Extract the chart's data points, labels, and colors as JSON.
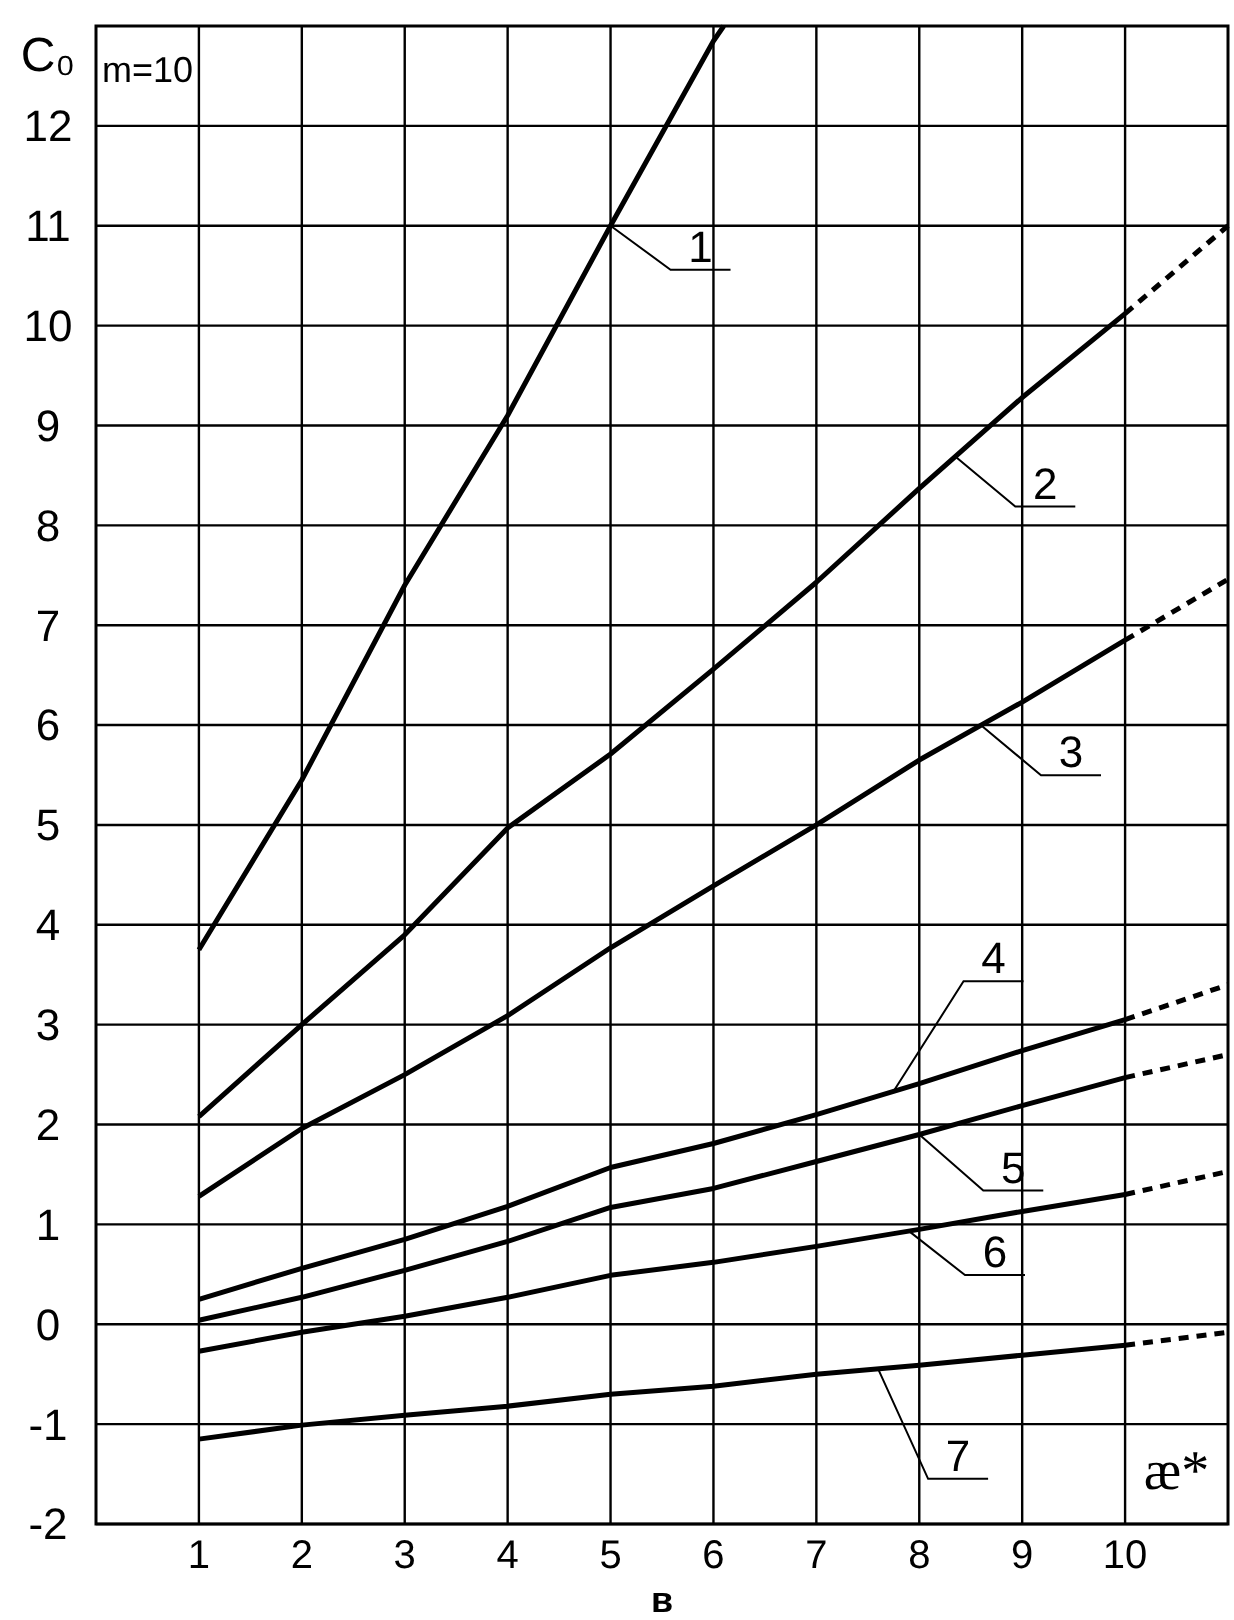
{
  "chart_data": {
    "type": "line",
    "ylabel": "C₀",
    "xlabel": "æ*",
    "annotations": [
      "m=10",
      "в"
    ],
    "xlim": [
      0,
      11
    ],
    "xticks": [
      1,
      2,
      3,
      4,
      5,
      6,
      7,
      8,
      9,
      10
    ],
    "ylim": [
      -2,
      13
    ],
    "yticks": [
      -2,
      -1,
      0,
      1,
      2,
      3,
      4,
      5,
      6,
      7,
      8,
      9,
      10,
      11,
      12
    ],
    "grid": true,
    "series": [
      {
        "name": "1",
        "color": "#000000",
        "line_style": "solid",
        "x": [
          1,
          2,
          3,
          4,
          5,
          6,
          6.1
        ],
        "values": [
          3.75,
          5.45,
          7.4,
          9.1,
          11.0,
          12.85,
          13.0
        ]
      },
      {
        "name": "2",
        "color": "#000000",
        "line_style": "solid",
        "x": [
          1,
          2,
          3,
          4,
          5,
          6,
          7,
          8,
          9,
          10
        ],
        "values": [
          2.08,
          3.0,
          3.9,
          4.97,
          5.71,
          6.56,
          7.43,
          8.37,
          9.28,
          10.12
        ]
      },
      {
        "color": "#000000",
        "line_style": "dashed",
        "x": [
          10,
          11
        ],
        "values": [
          10.12,
          11.0
        ]
      },
      {
        "name": "3",
        "color": "#000000",
        "line_style": "solid",
        "x": [
          1,
          2,
          3,
          4,
          5,
          6,
          7,
          8,
          9,
          10
        ],
        "values": [
          1.28,
          1.96,
          2.5,
          3.09,
          3.77,
          4.39,
          5.0,
          5.65,
          6.23,
          6.85
        ]
      },
      {
        "color": "#000000",
        "line_style": "dashed",
        "x": [
          10,
          11
        ],
        "values": [
          6.85,
          7.46
        ]
      },
      {
        "name": "4",
        "color": "#000000",
        "line_style": "solid",
        "x": [
          1,
          2,
          3,
          4,
          5,
          6,
          7,
          8,
          9,
          10
        ],
        "values": [
          0.25,
          0.56,
          0.85,
          1.18,
          1.57,
          1.81,
          2.1,
          2.41,
          2.74,
          3.05
        ]
      },
      {
        "color": "#000000",
        "line_style": "dashed",
        "x": [
          10,
          11
        ],
        "values": [
          3.05,
          3.4
        ]
      },
      {
        "name": "5",
        "color": "#000000",
        "line_style": "solid",
        "x": [
          1,
          2,
          3,
          4,
          5,
          6,
          7,
          8,
          9,
          10
        ],
        "values": [
          0.04,
          0.27,
          0.54,
          0.83,
          1.17,
          1.36,
          1.63,
          1.9,
          2.19,
          2.47
        ]
      },
      {
        "color": "#000000",
        "line_style": "dashed",
        "x": [
          10,
          11
        ],
        "values": [
          2.47,
          2.7
        ]
      },
      {
        "name": "6",
        "color": "#000000",
        "line_style": "solid",
        "x": [
          1,
          2,
          3,
          4,
          5,
          6,
          7,
          8,
          9,
          10
        ],
        "values": [
          -0.27,
          -0.08,
          0.08,
          0.27,
          0.49,
          0.62,
          0.78,
          0.95,
          1.13,
          1.3
        ]
      },
      {
        "color": "#000000",
        "line_style": "dashed",
        "x": [
          10,
          11
        ],
        "values": [
          1.3,
          1.53
        ]
      },
      {
        "name": "7",
        "color": "#000000",
        "line_style": "solid",
        "x": [
          1,
          2,
          3,
          4,
          5,
          6,
          7,
          8,
          9,
          10
        ],
        "values": [
          -1.15,
          -1.01,
          -0.91,
          -0.82,
          -0.7,
          -0.62,
          -0.5,
          -0.41,
          -0.31,
          -0.21
        ]
      },
      {
        "color": "#000000",
        "line_style": "dashed",
        "x": [
          10,
          11
        ],
        "values": [
          -0.21,
          -0.08
        ]
      }
    ]
  }
}
